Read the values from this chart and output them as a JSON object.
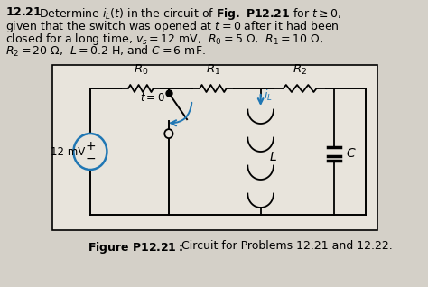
{
  "bg_color": "#d4d0c8",
  "box_facecolor": "#e8e4dc",
  "wire_color": "#000000",
  "blue_color": "#2077b4",
  "text_color": "#000000",
  "caption_bold": "Figure P12.21:",
  "caption_rest": " Circuit for Problems 12.21 and 12.22."
}
